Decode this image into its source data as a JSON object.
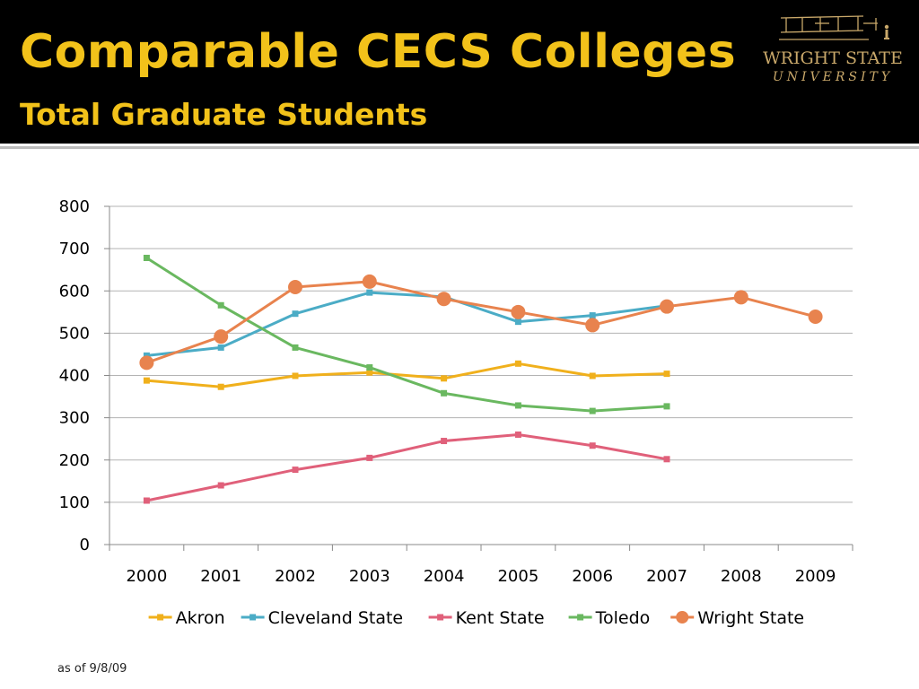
{
  "slide": {
    "title": "Comparable  CECS Colleges",
    "subtitle": "Total Graduate Students",
    "footnote": "as of 9/8/09"
  },
  "logo": {
    "name": "WRIGHT STATE",
    "subname": "UNIVERSITY",
    "icon": "wright-flyer-icon"
  },
  "colors": {
    "header_bg": "#000000",
    "title": "#f2c21a",
    "logo": "#c9a86a"
  },
  "chart_data": {
    "type": "line",
    "title": "",
    "xlabel": "",
    "ylabel": "",
    "categories": [
      "2000",
      "2001",
      "2002",
      "2003",
      "2004",
      "2005",
      "2006",
      "2007",
      "2008",
      "2009"
    ],
    "ylim": [
      0,
      800
    ],
    "yticks": [
      "0",
      "100",
      "200",
      "300",
      "400",
      "500",
      "600",
      "700",
      "800"
    ],
    "grid": true,
    "legend": "bottom",
    "series": [
      {
        "name": "Akron",
        "color": "#f0b01c",
        "marker": "square",
        "values": [
          388,
          373,
          399,
          407,
          393,
          428,
          399,
          404,
          null,
          null
        ]
      },
      {
        "name": "Cleveland State",
        "color": "#4bacc6",
        "marker": "square",
        "values": [
          447,
          466,
          546,
          596,
          586,
          527,
          542,
          565,
          null,
          null
        ]
      },
      {
        "name": "Kent State",
        "color": "#e0607a",
        "marker": "square",
        "values": [
          104,
          140,
          177,
          205,
          245,
          260,
          234,
          202,
          null,
          null
        ]
      },
      {
        "name": "Toledo",
        "color": "#6ab860",
        "marker": "square",
        "values": [
          678,
          566,
          466,
          419,
          358,
          329,
          316,
          327,
          null,
          null
        ]
      },
      {
        "name": "Wright State",
        "color": "#e8834e",
        "marker": "circle",
        "values": [
          430,
          492,
          609,
          622,
          581,
          550,
          519,
          563,
          585,
          539
        ]
      }
    ]
  }
}
